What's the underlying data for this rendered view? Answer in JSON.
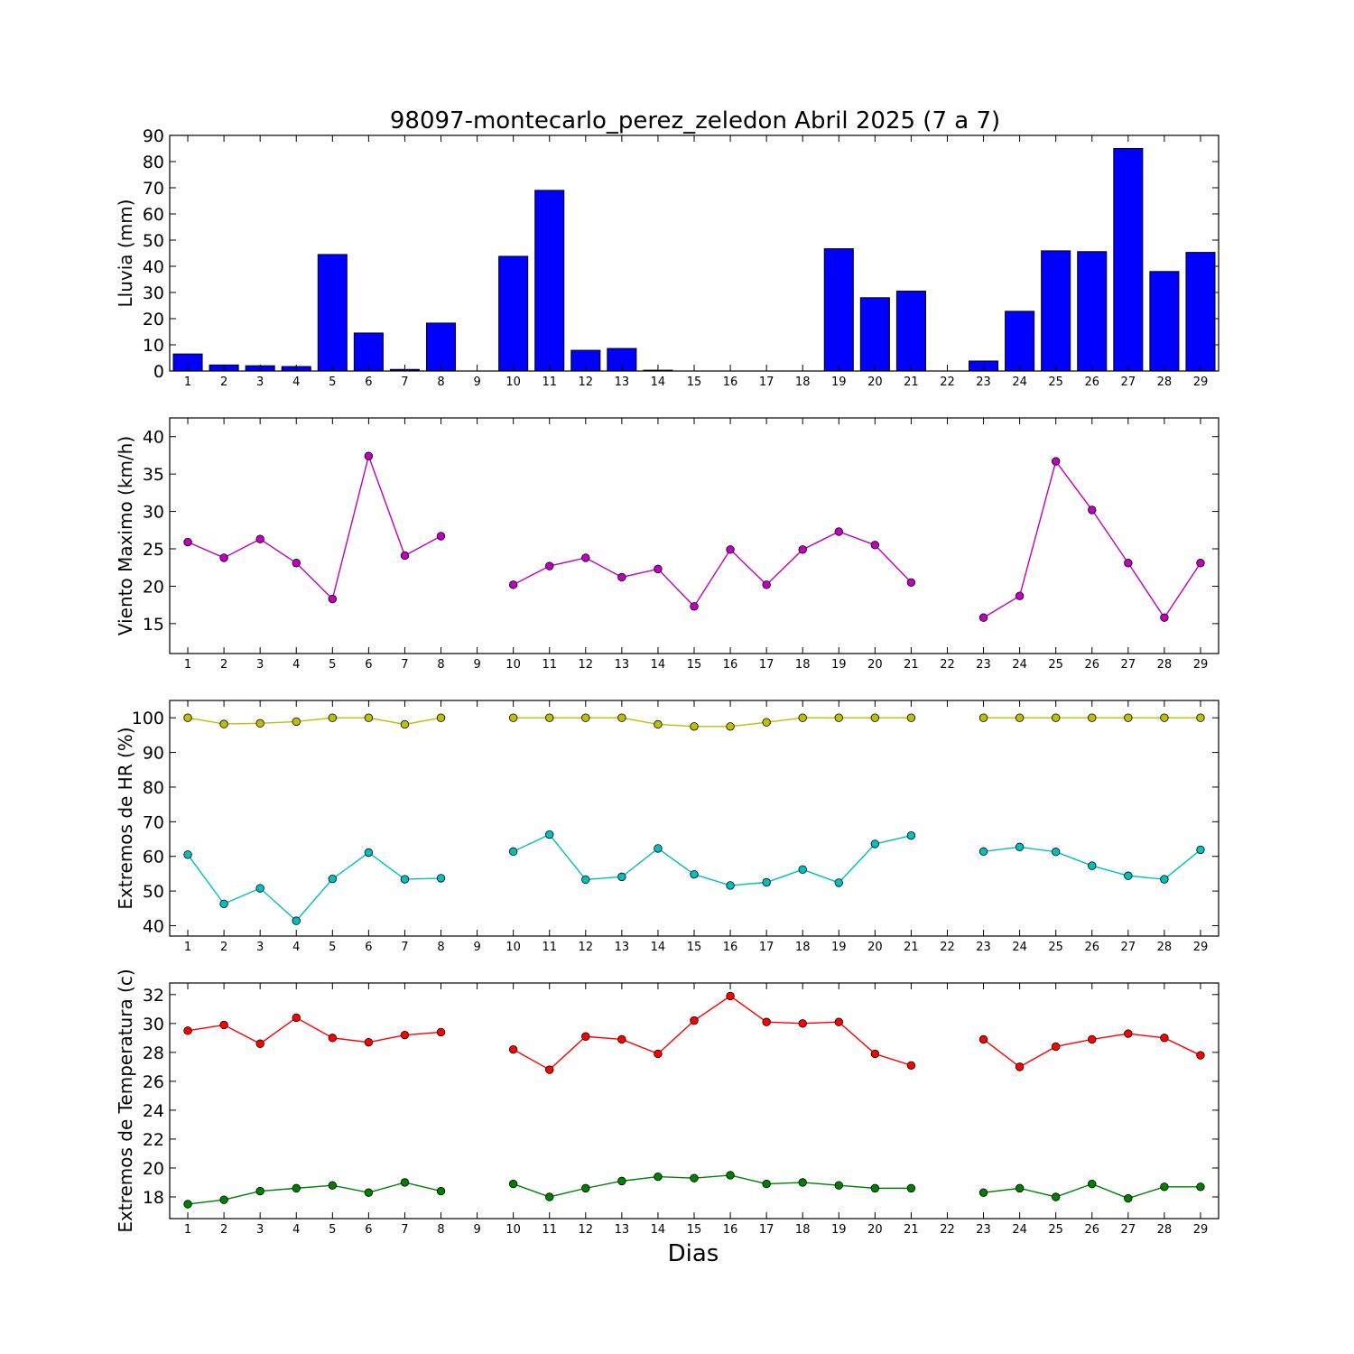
{
  "chart_data": {
    "title": "98097-montecarlo_perez_zeledon Abril 2025  (7 a 7)",
    "xlabel": "Dias",
    "x": [
      1,
      2,
      3,
      4,
      5,
      6,
      7,
      8,
      9,
      10,
      11,
      12,
      13,
      14,
      15,
      16,
      17,
      18,
      19,
      20,
      21,
      22,
      23,
      24,
      25,
      26,
      27,
      28,
      29
    ],
    "panels": [
      {
        "type": "bar",
        "ylabel": "Lluvia (mm)",
        "ylim": [
          0,
          90
        ],
        "yticks": [
          0,
          10,
          20,
          30,
          40,
          50,
          60,
          70,
          80,
          90
        ],
        "series": [
          {
            "color": "#0000ff",
            "values": [
              6.5,
              2.3,
              2.0,
              1.7,
              44.5,
              14.5,
              0.6,
              18.3,
              0,
              43.8,
              69.0,
              7.9,
              8.6,
              0.3,
              0,
              0,
              0,
              0,
              46.7,
              28.0,
              30.5,
              0,
              3.8,
              22.8,
              45.9,
              45.6,
              85.0,
              38.0,
              45.3
            ]
          }
        ]
      },
      {
        "type": "line",
        "ylabel": "Viento Maximo (km/h)",
        "ylim": [
          11,
          42.5
        ],
        "yticks": [
          15,
          20,
          25,
          30,
          35,
          40
        ],
        "series": [
          {
            "color": "#bf00bf",
            "values": [
              25.9,
              23.8,
              26.3,
              23.1,
              18.3,
              37.4,
              24.1,
              26.7,
              null,
              20.2,
              22.7,
              23.8,
              21.2,
              22.3,
              17.3,
              24.9,
              20.2,
              24.9,
              27.3,
              25.5,
              20.5,
              null,
              15.8,
              18.7,
              36.7,
              30.2,
              23.1,
              15.8,
              23.1
            ]
          }
        ]
      },
      {
        "type": "line",
        "ylabel": "Extremos de HR (%)",
        "ylim": [
          37,
          105
        ],
        "yticks": [
          40,
          50,
          60,
          70,
          80,
          90,
          100
        ],
        "series": [
          {
            "color": "#bfbf00",
            "values": [
              100,
              98.2,
              98.4,
              98.9,
              100,
              100,
              98.1,
              100,
              null,
              100,
              100,
              100,
              100,
              98.1,
              97.5,
              97.5,
              98.7,
              100,
              100,
              100,
              100,
              null,
              100,
              100,
              100,
              100,
              100,
              100,
              100
            ]
          },
          {
            "color": "#00bfbf",
            "values": [
              60.5,
              46.3,
              50.8,
              41.4,
              53.5,
              61.1,
              53.4,
              53.7,
              null,
              61.4,
              66.3,
              53.3,
              54.1,
              62.3,
              54.8,
              51.6,
              52.5,
              56.2,
              52.4,
              63.6,
              66.0,
              null,
              61.4,
              62.7,
              61.3,
              57.3,
              54.4,
              53.4,
              61.9
            ]
          }
        ]
      },
      {
        "type": "line",
        "ylabel": "Extremos de Temperatura (c)",
        "ylim": [
          16.5,
          32.8
        ],
        "yticks": [
          18,
          20,
          22,
          24,
          26,
          28,
          30,
          32
        ],
        "series": [
          {
            "color": "#ff0000",
            "values": [
              29.5,
              29.9,
              28.6,
              30.4,
              29.0,
              28.7,
              29.2,
              29.4,
              null,
              28.2,
              26.8,
              29.1,
              28.9,
              27.9,
              30.2,
              31.9,
              30.1,
              30.0,
              30.1,
              27.9,
              27.1,
              null,
              28.9,
              27.0,
              28.4,
              28.9,
              29.3,
              29.0,
              27.8
            ]
          },
          {
            "color": "#007f00",
            "values": [
              17.5,
              17.8,
              18.4,
              18.6,
              18.8,
              18.3,
              19.0,
              18.4,
              null,
              18.9,
              18.0,
              18.6,
              19.1,
              19.4,
              19.3,
              19.5,
              18.9,
              19.0,
              18.8,
              18.6,
              18.6,
              null,
              18.3,
              18.6,
              18.0,
              18.9,
              17.9,
              18.7,
              18.7
            ]
          }
        ]
      }
    ]
  }
}
